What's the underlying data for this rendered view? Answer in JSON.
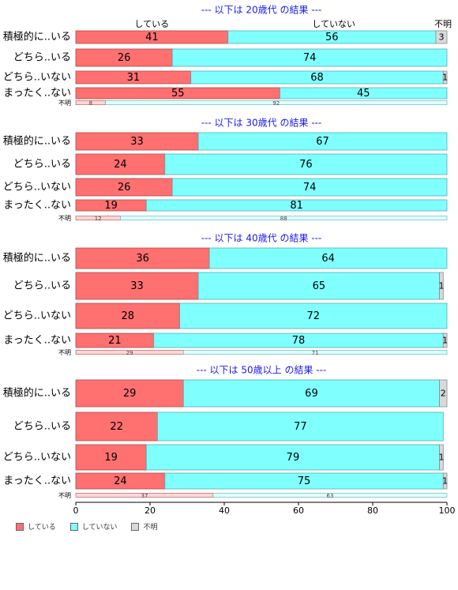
{
  "chart_data": {
    "type": "bar",
    "orientation": "horizontal",
    "stacked": true,
    "xlim": [
      0,
      100
    ],
    "xticks": [
      "0",
      "20",
      "40",
      "60",
      "80",
      "100"
    ],
    "header_labels": [
      "している",
      "していない",
      "不明"
    ],
    "legend": {
      "position": "bottom-left",
      "entries": [
        "している",
        "していない",
        "不明"
      ]
    },
    "colors": [
      "#ff7070",
      "#80ffff",
      "#d9d9d9"
    ],
    "panels": [
      {
        "title": "--- 以下は 20歳代 の結果 ---",
        "categories": [
          "積極的に..いる",
          "どちら..いる",
          "どちら..いない",
          "まったく..ない"
        ],
        "series": [
          {
            "name": "している",
            "values": [
              41,
              26,
              31,
              55
            ]
          },
          {
            "name": "していない",
            "values": [
              56,
              74,
              68,
              45
            ]
          },
          {
            "name": "不明",
            "values": [
              3,
              0,
              1,
              0
            ]
          }
        ],
        "fumei": {
          "label": "不明",
          "values": [
            8,
            92
          ]
        }
      },
      {
        "title": "--- 以下は 30歳代 の結果 ---",
        "categories": [
          "積極的に..いる",
          "どちら..いる",
          "どちら..いない",
          "まったく..ない"
        ],
        "series": [
          {
            "name": "している",
            "values": [
              33,
              24,
              26,
              19
            ]
          },
          {
            "name": "していない",
            "values": [
              67,
              76,
              74,
              81
            ]
          },
          {
            "name": "不明",
            "values": [
              0,
              0,
              0,
              0
            ]
          }
        ],
        "fumei": {
          "label": "不明",
          "values": [
            12,
            88
          ]
        }
      },
      {
        "title": "--- 以下は 40歳代 の結果 ---",
        "categories": [
          "積極的に..いる",
          "どちら..いる",
          "どちら..いない",
          "まったく..ない"
        ],
        "series": [
          {
            "name": "している",
            "values": [
              36,
              33,
              28,
              21
            ]
          },
          {
            "name": "していない",
            "values": [
              64,
              65,
              72,
              78
            ]
          },
          {
            "name": "不明",
            "values": [
              0,
              1,
              0,
              1
            ]
          }
        ],
        "fumei": {
          "label": "不明",
          "values": [
            29,
            71
          ]
        }
      },
      {
        "title": "--- 以下は 50歳以上 の結果 ---",
        "categories": [
          "積極的に..いる",
          "どちら..いる",
          "どちら..いない",
          "まったく..ない"
        ],
        "series": [
          {
            "name": "している",
            "values": [
              29,
              22,
              19,
              24
            ]
          },
          {
            "name": "していない",
            "values": [
              69,
              77,
              79,
              75
            ]
          },
          {
            "name": "不明",
            "values": [
              2,
              0,
              1,
              1
            ]
          }
        ],
        "fumei": {
          "label": "不明",
          "values": [
            37,
            63
          ]
        }
      }
    ]
  }
}
